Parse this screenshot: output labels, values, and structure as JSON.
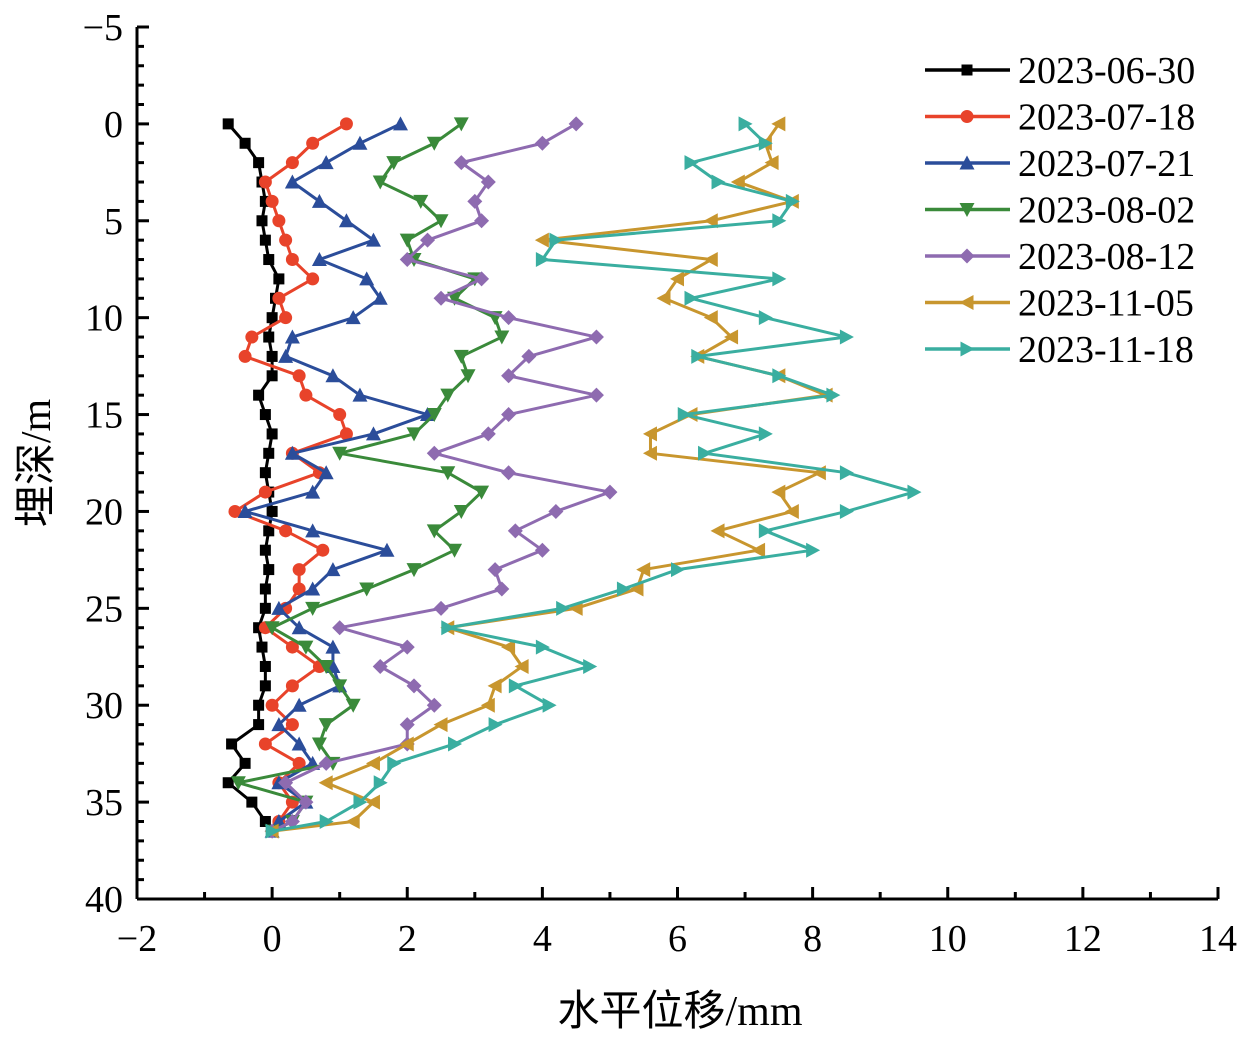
{
  "chart_data": {
    "type": "line",
    "title": "",
    "xlabel": "水平位移/mm",
    "ylabel": "埋深/m",
    "xlim": [
      -2,
      14
    ],
    "ylim": [
      -5,
      40
    ],
    "y_inverted": true,
    "xticks": [
      -2,
      0,
      2,
      4,
      6,
      8,
      10,
      12,
      14
    ],
    "yticks": [
      -5,
      0,
      5,
      10,
      15,
      20,
      25,
      30,
      35,
      40
    ],
    "xtick_labels": [
      "−2",
      "0",
      "2",
      "4",
      "6",
      "8",
      "10",
      "12",
      "14"
    ],
    "ytick_labels": [
      "−5",
      "0",
      "5",
      "10",
      "15",
      "20",
      "25",
      "30",
      "35",
      "40"
    ],
    "legend_position": "top-right",
    "depth": [
      0,
      1,
      2,
      3,
      4,
      5,
      6,
      7,
      8,
      9,
      10,
      11,
      12,
      13,
      14,
      15,
      16,
      17,
      18,
      19,
      20,
      21,
      22,
      23,
      24,
      25,
      26,
      27,
      28,
      29,
      30,
      31,
      32,
      33,
      34,
      35,
      36,
      36.5
    ],
    "series": [
      {
        "name": "2023-06-30",
        "color": "#000000",
        "marker": "square",
        "values": [
          -0.65,
          -0.4,
          -0.2,
          -0.15,
          -0.1,
          -0.15,
          -0.1,
          -0.05,
          0.1,
          0.05,
          0.0,
          -0.05,
          0.0,
          0.0,
          -0.2,
          -0.1,
          0.0,
          -0.05,
          -0.1,
          -0.05,
          0.0,
          -0.05,
          -0.1,
          -0.05,
          -0.1,
          -0.1,
          -0.2,
          -0.15,
          -0.1,
          -0.1,
          -0.2,
          -0.2,
          -0.6,
          -0.4,
          -0.65,
          -0.3,
          -0.1,
          0.0
        ]
      },
      {
        "name": "2023-07-18",
        "color": "#e8432a",
        "marker": "circle",
        "values": [
          1.1,
          0.6,
          0.3,
          -0.1,
          0.0,
          0.1,
          0.2,
          0.3,
          0.6,
          0.1,
          0.2,
          -0.3,
          -0.4,
          0.4,
          0.5,
          1.0,
          1.1,
          0.3,
          0.7,
          -0.1,
          -0.55,
          0.2,
          0.75,
          0.4,
          0.4,
          0.2,
          -0.1,
          0.3,
          0.7,
          0.3,
          0.0,
          0.3,
          -0.1,
          0.4,
          0.1,
          0.3,
          0.1,
          0.0
        ]
      },
      {
        "name": "2023-07-21",
        "color": "#2b4d9a",
        "marker": "triangle-up",
        "values": [
          1.9,
          1.3,
          0.8,
          0.3,
          0.7,
          1.1,
          1.5,
          0.7,
          1.4,
          1.6,
          1.2,
          0.3,
          0.2,
          0.9,
          1.3,
          2.3,
          1.5,
          0.3,
          0.8,
          0.6,
          -0.4,
          0.6,
          1.7,
          0.9,
          0.6,
          0.1,
          0.4,
          0.9,
          0.9,
          1.0,
          0.4,
          0.1,
          0.4,
          0.6,
          0.1,
          0.5,
          0.1,
          0.0
        ]
      },
      {
        "name": "2023-08-02",
        "color": "#3a8a3a",
        "marker": "triangle-down",
        "values": [
          2.8,
          2.4,
          1.8,
          1.6,
          2.2,
          2.5,
          2.0,
          2.1,
          3.0,
          2.7,
          3.3,
          3.4,
          2.8,
          2.9,
          2.6,
          2.4,
          2.1,
          1.0,
          2.6,
          3.1,
          2.8,
          2.4,
          2.7,
          2.1,
          1.4,
          0.6,
          0.0,
          0.5,
          0.8,
          1.0,
          1.2,
          0.8,
          0.7,
          0.9,
          -0.5,
          0.5,
          0.3,
          0.0
        ]
      },
      {
        "name": "2023-08-12",
        "color": "#8e6bb0",
        "marker": "diamond",
        "values": [
          4.5,
          4.0,
          2.8,
          3.2,
          3.0,
          3.1,
          2.3,
          2.0,
          3.1,
          2.5,
          3.5,
          4.8,
          3.8,
          3.5,
          4.8,
          3.5,
          3.2,
          2.4,
          3.5,
          5.0,
          4.2,
          3.6,
          4.0,
          3.3,
          3.4,
          2.5,
          1.0,
          2.0,
          1.6,
          2.1,
          2.4,
          2.0,
          2.0,
          0.8,
          0.2,
          0.5,
          0.3,
          0.0
        ]
      },
      {
        "name": "2023-11-05",
        "color": "#c8962e",
        "marker": "triangle-left",
        "values": [
          7.5,
          7.3,
          7.4,
          6.9,
          7.7,
          6.5,
          4.0,
          6.5,
          6.0,
          5.8,
          6.5,
          6.8,
          6.3,
          7.5,
          8.2,
          6.2,
          5.6,
          5.6,
          8.1,
          7.5,
          7.7,
          6.6,
          7.2,
          5.5,
          5.4,
          4.5,
          2.6,
          3.5,
          3.7,
          3.3,
          3.2,
          2.5,
          2.0,
          1.5,
          0.8,
          1.5,
          1.2,
          0.0
        ]
      },
      {
        "name": "2023-11-18",
        "color": "#3aaea0",
        "marker": "triangle-right",
        "values": [
          7.0,
          7.3,
          6.2,
          6.6,
          7.7,
          7.5,
          4.2,
          4.0,
          7.5,
          6.2,
          7.3,
          8.5,
          6.3,
          7.5,
          8.3,
          6.1,
          7.3,
          6.4,
          8.5,
          9.5,
          8.5,
          7.3,
          8.0,
          6.0,
          5.2,
          4.3,
          2.6,
          4.0,
          4.7,
          3.6,
          4.1,
          3.3,
          2.7,
          1.8,
          1.6,
          1.3,
          0.8,
          0.0
        ]
      }
    ]
  }
}
